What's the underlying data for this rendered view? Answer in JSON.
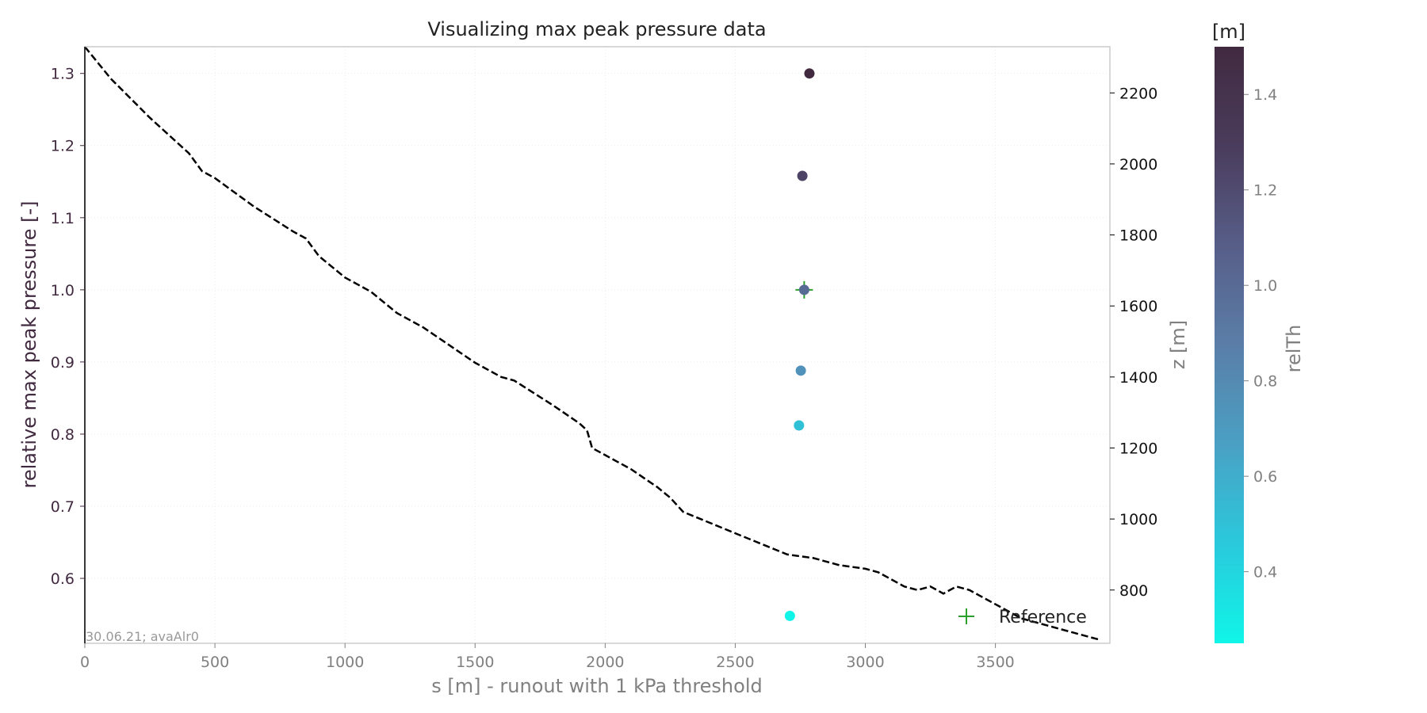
{
  "chart_data": {
    "type": "scatter",
    "title": "Visualizing max peak pressure data",
    "xlabel": "s [m] - runout with 1 kPa threshold",
    "ylabel": "relative max peak pressure [-]",
    "y2label": "z [m]",
    "colorbar_title": "[m]",
    "colorbar_label": "relTh",
    "footnote": "30.06.21; avaAlr0",
    "xlim": [
      0,
      3940
    ],
    "ylim": [
      0.51,
      1.337
    ],
    "y2lim": [
      650,
      2330
    ],
    "clim": [
      0.25,
      1.5
    ],
    "grid": true,
    "legend_position": "lower-right",
    "x_ticks": [
      0,
      500,
      1000,
      1500,
      2000,
      2500,
      3000,
      3500
    ],
    "y_ticks": [
      0.6,
      0.7,
      0.8,
      0.9,
      1.0,
      1.1,
      1.2,
      1.3
    ],
    "y2_ticks": [
      800,
      1000,
      1200,
      1400,
      1600,
      1800,
      2000,
      2200
    ],
    "c_ticks": [
      0.4,
      0.6,
      0.8,
      1.0,
      1.2,
      1.4
    ],
    "colormap": [
      "#10f5e8",
      "#2ac9dc",
      "#4aa0c4",
      "#5a7ea8",
      "#575e88",
      "#4a3c5c",
      "#412a40"
    ],
    "series": [
      {
        "kind": "scatter",
        "points": [
          {
            "x": 2710,
            "y": 0.548,
            "c": 0.25
          },
          {
            "x": 2745,
            "y": 0.812,
            "c": 0.5
          },
          {
            "x": 2752,
            "y": 0.888,
            "c": 0.75
          },
          {
            "x": 2765,
            "y": 1.0,
            "c": 1.0
          },
          {
            "x": 2758,
            "y": 1.158,
            "c": 1.25
          },
          {
            "x": 2785,
            "y": 1.3,
            "c": 1.5
          }
        ]
      },
      {
        "kind": "marker",
        "name": "Reference",
        "color": "#2ca02c",
        "points": [
          {
            "x": 2765,
            "y": 1.0
          }
        ]
      },
      {
        "kind": "line",
        "axis": "y2",
        "color": "#000000",
        "points": [
          [
            0,
            2330
          ],
          [
            100,
            2240
          ],
          [
            250,
            2130
          ],
          [
            400,
            2030
          ],
          [
            450,
            1980
          ],
          [
            500,
            1960
          ],
          [
            650,
            1880
          ],
          [
            800,
            1810
          ],
          [
            850,
            1790
          ],
          [
            900,
            1740
          ],
          [
            1000,
            1680
          ],
          [
            1100,
            1640
          ],
          [
            1200,
            1580
          ],
          [
            1300,
            1540
          ],
          [
            1500,
            1440
          ],
          [
            1600,
            1400
          ],
          [
            1650,
            1390
          ],
          [
            1800,
            1320
          ],
          [
            1900,
            1270
          ],
          [
            1930,
            1250
          ],
          [
            1950,
            1200
          ],
          [
            2000,
            1180
          ],
          [
            2100,
            1140
          ],
          [
            2200,
            1090
          ],
          [
            2250,
            1060
          ],
          [
            2300,
            1020
          ],
          [
            2400,
            990
          ],
          [
            2500,
            960
          ],
          [
            2600,
            930
          ],
          [
            2700,
            900
          ],
          [
            2800,
            890
          ],
          [
            2900,
            870
          ],
          [
            3000,
            860
          ],
          [
            3050,
            850
          ],
          [
            3150,
            810
          ],
          [
            3200,
            800
          ],
          [
            3250,
            810
          ],
          [
            3300,
            790
          ],
          [
            3350,
            810
          ],
          [
            3400,
            800
          ],
          [
            3500,
            760
          ],
          [
            3600,
            720
          ],
          [
            3700,
            700
          ],
          [
            3800,
            680
          ],
          [
            3900,
            660
          ]
        ]
      }
    ]
  }
}
